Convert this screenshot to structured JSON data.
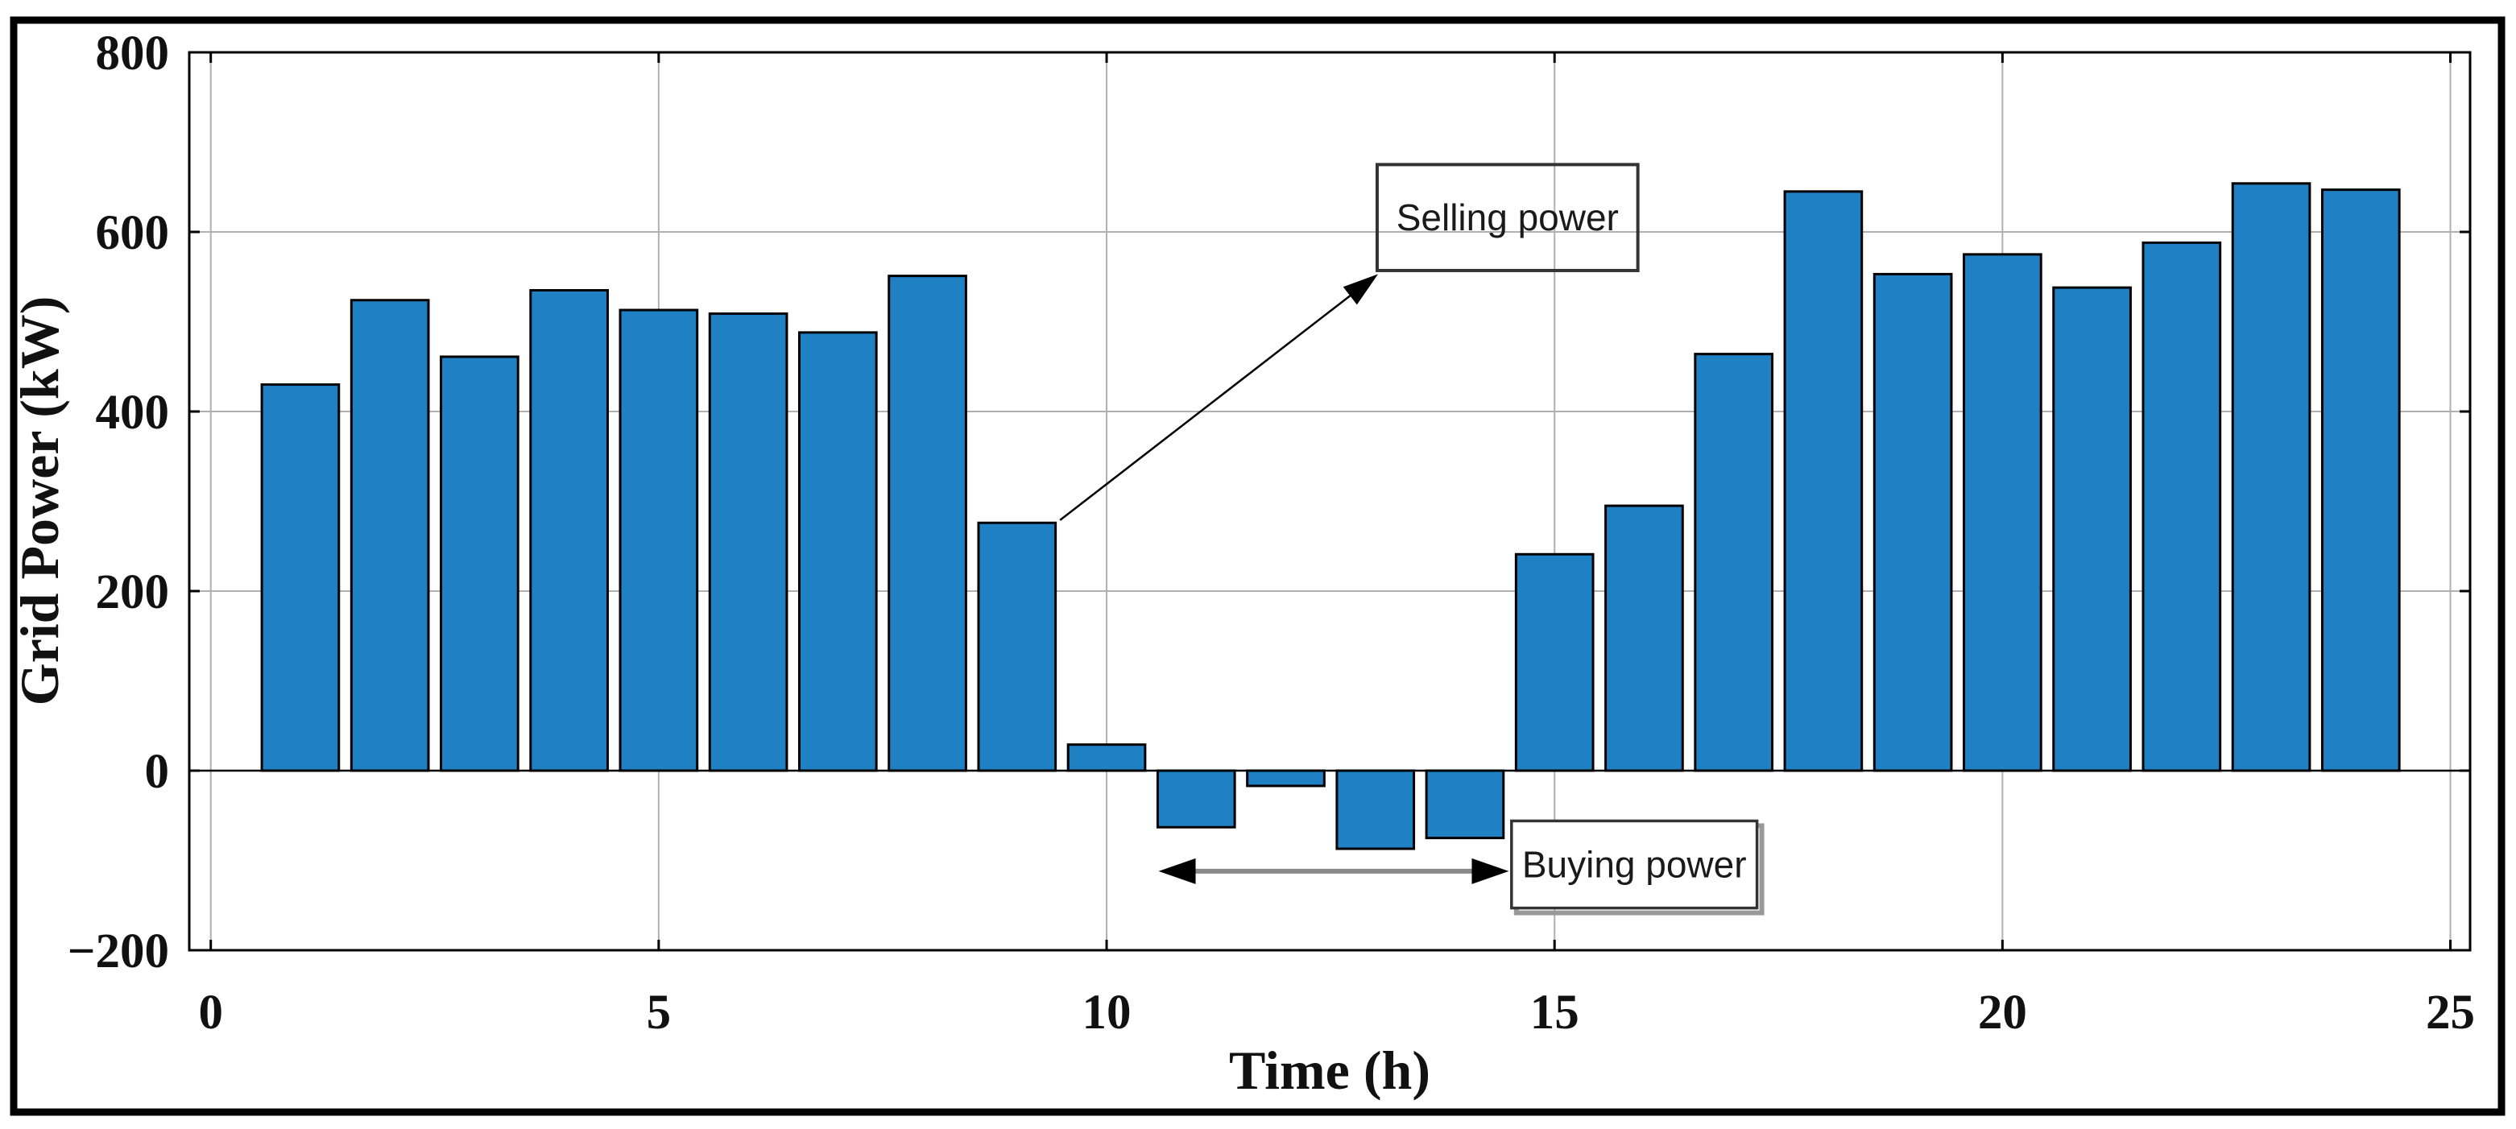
{
  "figure": {
    "background": "#ffffff",
    "frame_color": "#000000"
  },
  "chart_data": {
    "type": "bar",
    "title": "",
    "xlabel": "Time (h)",
    "ylabel": "Grid Power (kW)",
    "categories": [
      1,
      2,
      3,
      4,
      5,
      6,
      7,
      8,
      9,
      10,
      11,
      12,
      13,
      14,
      15,
      16,
      17,
      18,
      19,
      20,
      21,
      22,
      23,
      24
    ],
    "values": [
      430,
      524,
      461,
      535,
      513,
      509,
      488,
      551,
      276,
      29,
      -63,
      -17,
      -87,
      -75,
      241,
      295,
      464,
      645,
      553,
      575,
      538,
      588,
      654,
      647
    ],
    "bar_color": "#1f80c4",
    "bar_edge_color": "#000000",
    "bar_width_fraction": 0.86,
    "baseline_value": 0,
    "xlim": [
      -0.24,
      25.22
    ],
    "ylim": [
      -200,
      800
    ],
    "xticks": [
      0,
      5,
      10,
      15,
      20,
      25
    ],
    "xtick_labels": [
      "0",
      "5",
      "10",
      "15",
      "20",
      "25"
    ],
    "yticks": [
      -200,
      0,
      200,
      400,
      600,
      800
    ],
    "ytick_labels": [
      "−200",
      "0",
      "200",
      "400",
      "600",
      "800"
    ],
    "grid": true,
    "grid_color": "#b0b0b0",
    "legend": "none",
    "annotations": [
      {
        "id": "selling",
        "label": "Selling power",
        "text_color": "#1a1a1a",
        "box_border_color": "#333333",
        "box_fill": "none",
        "box": {
          "x1": 13.02,
          "x2": 15.93,
          "y1": 557,
          "y2": 675
        },
        "arrow": {
          "type": "single",
          "from": {
            "x": 9.48,
            "y": 279
          },
          "to": {
            "x": 13.03,
            "y": 553
          },
          "color": "#000000"
        }
      },
      {
        "id": "buying",
        "label": "Buying power",
        "text_color": "#1a1a1a",
        "box_border_color": "#333333",
        "box_fill": "#ffffff",
        "box_shadow_color": "#999999",
        "box": {
          "x1": 14.52,
          "x2": 17.26,
          "y1": -153,
          "y2": -56
        },
        "arrow": {
          "type": "double",
          "x1": 10.58,
          "x2": 14.49,
          "y": -112,
          "shaft_color": "#8a8a8a",
          "head_color": "#000000"
        }
      }
    ]
  }
}
